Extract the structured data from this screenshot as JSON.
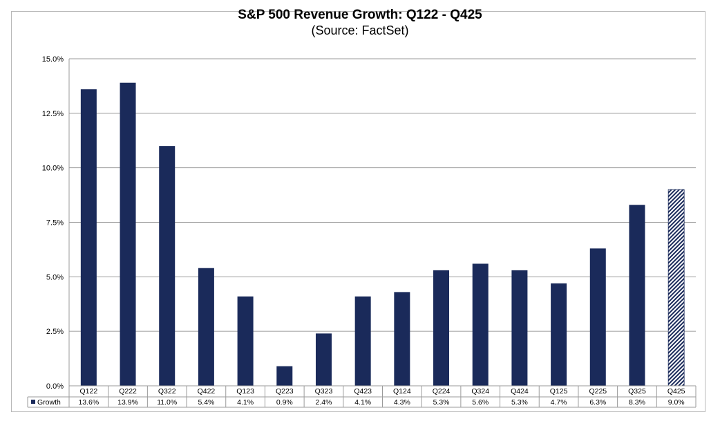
{
  "chart_data": {
    "type": "bar",
    "title": "S&P 500 Revenue Growth: Q122 - Q425",
    "subtitle": "(Source: FactSet)",
    "categories": [
      "Q122",
      "Q222",
      "Q322",
      "Q422",
      "Q123",
      "Q223",
      "Q323",
      "Q423",
      "Q124",
      "Q224",
      "Q324",
      "Q424",
      "Q125",
      "Q225",
      "Q325",
      "Q425"
    ],
    "values": [
      13.6,
      13.9,
      11.0,
      5.4,
      4.1,
      0.9,
      2.4,
      4.1,
      4.3,
      5.3,
      5.6,
      5.3,
      4.7,
      6.3,
      8.3,
      9.0
    ],
    "value_labels": [
      "13.6%",
      "13.9%",
      "11.0%",
      "5.4%",
      "4.1%",
      "0.9%",
      "2.4%",
      "4.1%",
      "4.3%",
      "5.3%",
      "5.6%",
      "5.3%",
      "4.7%",
      "6.3%",
      "8.3%",
      "9.0%"
    ],
    "estimate_categories": [
      "Q425"
    ],
    "series_name": "Growth",
    "ylim": [
      0,
      15
    ],
    "yticks": [
      "0.0%",
      "2.5%",
      "5.0%",
      "7.5%",
      "10.0%",
      "12.5%",
      "15.0%"
    ],
    "xlabel": "",
    "ylabel": "",
    "grid": true,
    "legend": "data-table",
    "colors": {
      "bar": "#1a2a5a",
      "grid": "#9a9a9a",
      "border": "#b8b8b8"
    }
  }
}
